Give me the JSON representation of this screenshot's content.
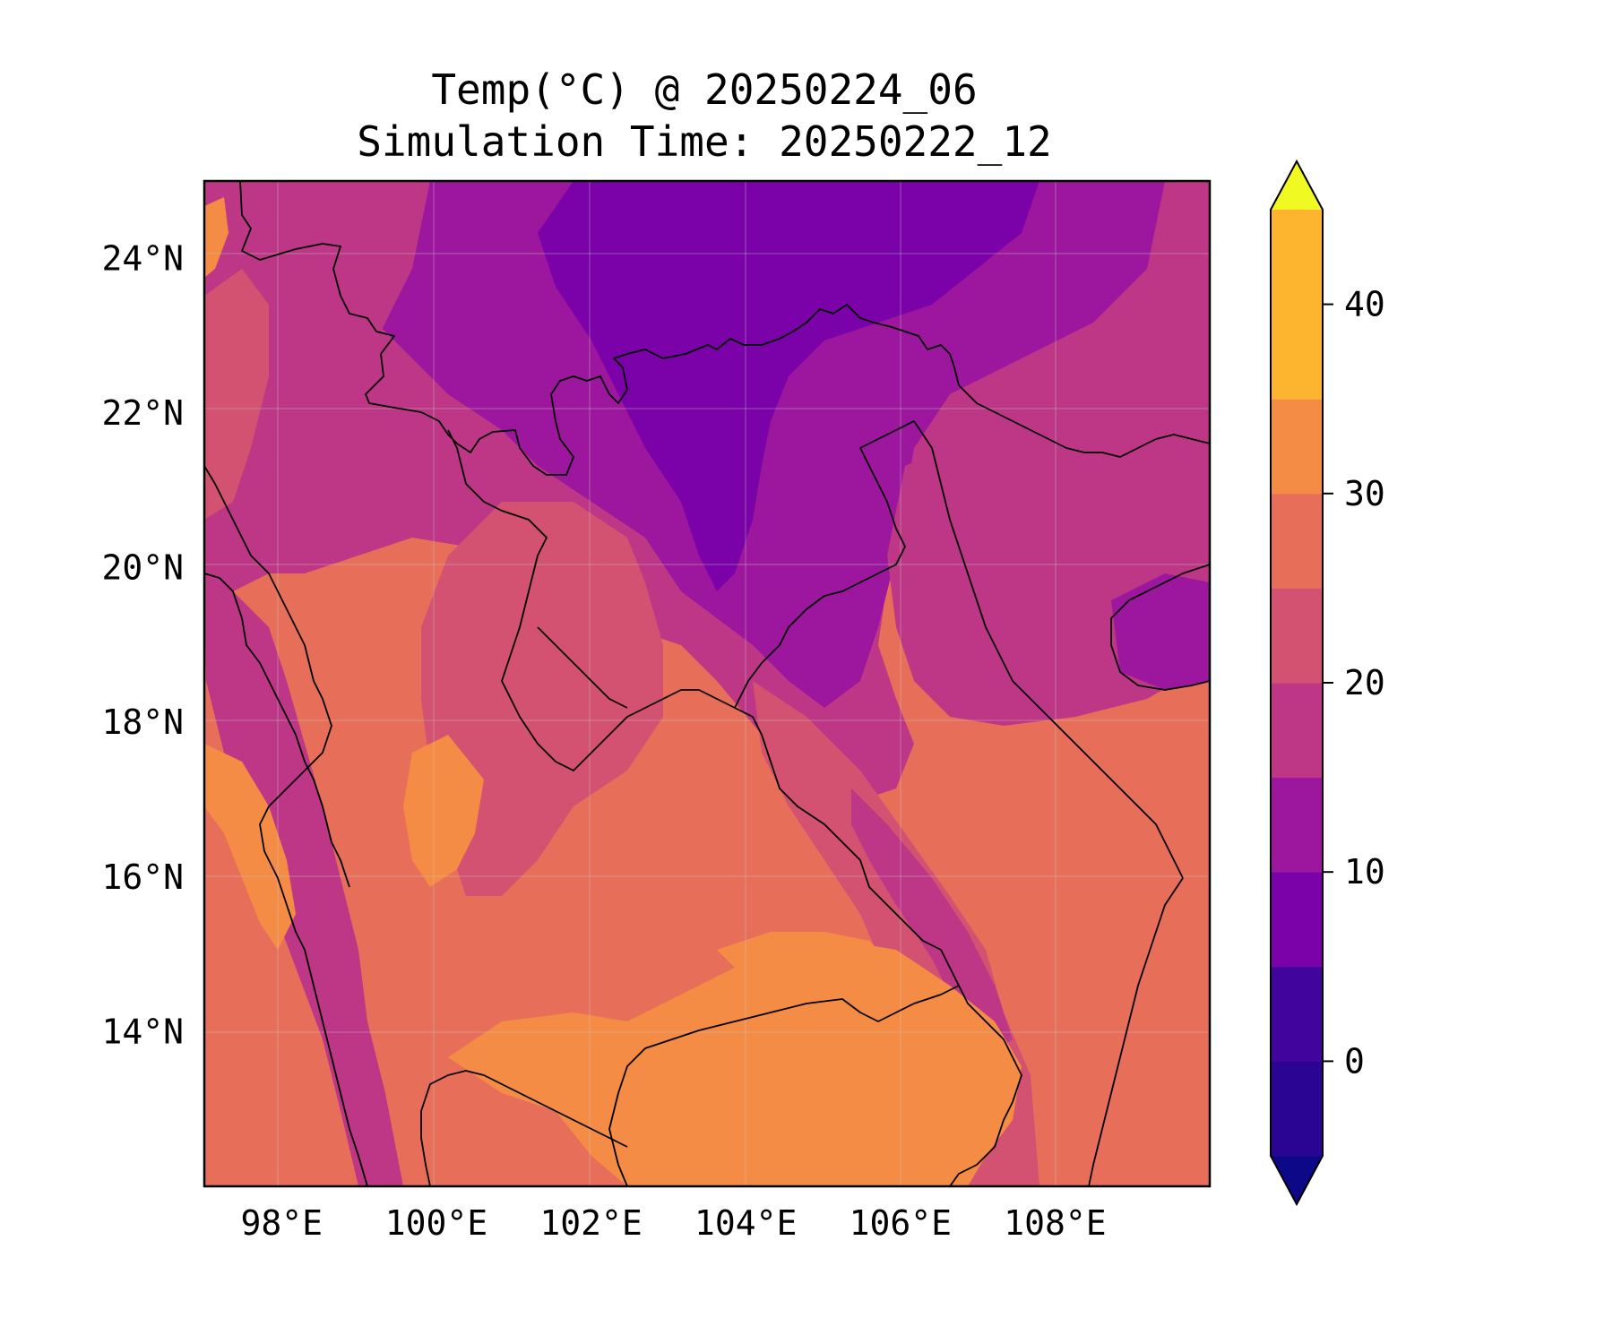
{
  "title_line1": "Temp(°C) @ 20250224_06",
  "title_line2": "Simulation Time: 20250222_12",
  "chart_data": {
    "type": "heatmap",
    "variable": "Temp(°C)",
    "valid_time": "20250224_06",
    "simulation_time": "20250222_12",
    "x_ticks": [
      "98°E",
      "100°E",
      "102°E",
      "104°E",
      "106°E",
      "108°E"
    ],
    "y_ticks": [
      "24°N",
      "22°N",
      "20°N",
      "18°N",
      "16°N",
      "14°N"
    ],
    "xlim": [
      97.0,
      110.0
    ],
    "ylim": [
      12.0,
      25.0
    ],
    "grid": true,
    "colormap": "plasma",
    "colorbar": {
      "levels": [
        -5,
        0,
        5,
        10,
        15,
        20,
        25,
        30,
        35,
        40,
        45
      ],
      "tick_labels": [
        "0",
        "10",
        "20",
        "30",
        "40"
      ],
      "extend": "both",
      "colors": [
        "#0d0887",
        "#2a0593",
        "#41049d",
        "#7a02a8",
        "#9c179e",
        "#bd3786",
        "#d35171",
        "#e76f5a",
        "#f58c46",
        "#fdb42f",
        "#f0f921"
      ]
    }
  },
  "colors": {
    "cold": "#7a02a8",
    "cool": "#9c179e",
    "mild": "#bd3786",
    "warm": "#d35171",
    "hot": "#e76f5a",
    "very_hot": "#f58c46",
    "border": "#000000"
  }
}
